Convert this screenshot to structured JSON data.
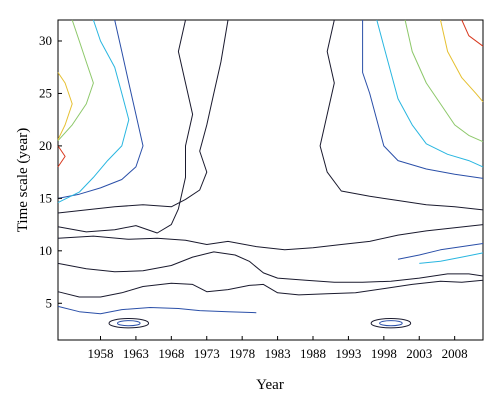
{
  "chart_data": {
    "type": "contour",
    "title": "",
    "xlabel": "Year",
    "ylabel": "Time scale (year)",
    "xlim": [
      1952,
      2012
    ],
    "ylim": [
      1.5,
      32
    ],
    "x_ticks": [
      1958,
      1963,
      1968,
      1973,
      1978,
      1983,
      1988,
      1993,
      1998,
      2003,
      2008
    ],
    "y_ticks": [
      5,
      10,
      15,
      20,
      25,
      30
    ],
    "grid": false,
    "legend": "none",
    "colors": {
      "level1": "#1a1a2e",
      "level2": "#2a4fa8",
      "level3": "#29b6e0",
      "level4": "#8dc86a",
      "level5": "#e6c030",
      "level6": "#d8381e"
    },
    "contours": [
      {
        "level": 1,
        "points": [
          [
            1952,
            8.8
          ],
          [
            1956,
            8.3
          ],
          [
            1960,
            8.0
          ],
          [
            1964,
            8.1
          ],
          [
            1968,
            8.6
          ],
          [
            1971,
            9.4
          ],
          [
            1974,
            9.9
          ],
          [
            1977,
            9.6
          ],
          [
            1979,
            9.0
          ],
          [
            1981,
            7.9
          ],
          [
            1983,
            7.4
          ],
          [
            1987,
            7.2
          ],
          [
            1991,
            7.0
          ],
          [
            1995,
            7.0
          ],
          [
            1999,
            7.1
          ],
          [
            2003,
            7.4
          ],
          [
            2007,
            7.8
          ],
          [
            2010,
            7.8
          ],
          [
            2012,
            7.6
          ]
        ]
      },
      {
        "level": 1,
        "points": [
          [
            1952,
            6.1
          ],
          [
            1955,
            5.6
          ],
          [
            1958,
            5.6
          ],
          [
            1961,
            6.0
          ],
          [
            1964,
            6.6
          ],
          [
            1968,
            6.9
          ],
          [
            1971,
            6.8
          ],
          [
            1973,
            6.1
          ],
          [
            1976,
            6.3
          ],
          [
            1979,
            6.7
          ],
          [
            1981,
            6.8
          ],
          [
            1983,
            6.0
          ],
          [
            1986,
            5.8
          ],
          [
            1990,
            5.9
          ],
          [
            1994,
            6.0
          ],
          [
            1998,
            6.4
          ],
          [
            2002,
            6.8
          ],
          [
            2006,
            7.1
          ],
          [
            2009,
            7.0
          ],
          [
            2012,
            7.2
          ]
        ]
      },
      {
        "level": 1,
        "points": [
          [
            1952,
            13.6
          ],
          [
            1956,
            13.9
          ],
          [
            1960,
            14.2
          ],
          [
            1964,
            14.4
          ],
          [
            1968,
            14.2
          ],
          [
            1970,
            14.9
          ],
          [
            1972,
            15.8
          ],
          [
            1973,
            17.5
          ],
          [
            1972,
            19.5
          ],
          [
            1973,
            22.0
          ],
          [
            1974,
            25.0
          ],
          [
            1975,
            28.0
          ],
          [
            1976,
            32.0
          ]
        ]
      },
      {
        "level": 1,
        "points": [
          [
            1952,
            12.3
          ],
          [
            1956,
            11.8
          ],
          [
            1960,
            12.0
          ],
          [
            1963,
            12.4
          ],
          [
            1966,
            11.7
          ],
          [
            1968,
            12.5
          ],
          [
            1969,
            14.0
          ],
          [
            1970,
            17.0
          ],
          [
            1970,
            20.0
          ],
          [
            1971,
            23.0
          ],
          [
            1970,
            26.0
          ],
          [
            1969,
            29.0
          ],
          [
            1970,
            32.0
          ]
        ]
      },
      {
        "level": 1,
        "points": [
          [
            1952,
            11.2
          ],
          [
            1957,
            11.4
          ],
          [
            1962,
            11.1
          ],
          [
            1966,
            11.2
          ],
          [
            1970,
            11.0
          ],
          [
            1973,
            10.6
          ],
          [
            1976,
            10.9
          ],
          [
            1980,
            10.4
          ],
          [
            1984,
            10.1
          ],
          [
            1988,
            10.3
          ],
          [
            1992,
            10.6
          ],
          [
            1996,
            10.9
          ],
          [
            2000,
            11.5
          ],
          [
            2004,
            11.9
          ],
          [
            2008,
            12.2
          ],
          [
            2012,
            12.5
          ]
        ]
      },
      {
        "level": 1,
        "points": [
          [
            1991,
            32.0
          ],
          [
            1990,
            29.0
          ],
          [
            1991,
            26.0
          ],
          [
            1990,
            23.0
          ],
          [
            1989,
            20.0
          ],
          [
            1990,
            17.5
          ],
          [
            1992,
            15.7
          ],
          [
            1996,
            15.2
          ],
          [
            2000,
            14.8
          ],
          [
            2004,
            14.4
          ],
          [
            2008,
            14.2
          ],
          [
            2012,
            13.9
          ]
        ]
      },
      {
        "level": 2,
        "points": [
          [
            1952,
            15.0
          ],
          [
            1955,
            15.4
          ],
          [
            1958,
            16.0
          ],
          [
            1961,
            16.8
          ],
          [
            1963,
            18.0
          ],
          [
            1964,
            20.0
          ],
          [
            1963,
            23.0
          ],
          [
            1962,
            26.0
          ],
          [
            1961,
            29.0
          ],
          [
            1960,
            32.0
          ]
        ]
      },
      {
        "level": 2,
        "points": [
          [
            1952,
            4.7
          ],
          [
            1955,
            4.2
          ],
          [
            1958,
            4.0
          ],
          [
            1961,
            4.4
          ],
          [
            1965,
            4.6
          ],
          [
            1969,
            4.5
          ],
          [
            1972,
            4.3
          ],
          [
            1976,
            4.2
          ],
          [
            1980,
            4.1
          ]
        ]
      },
      {
        "level": 2,
        "points": [
          [
            1995,
            32.0
          ],
          [
            1995,
            29.0
          ],
          [
            1995,
            27.0
          ],
          [
            1996,
            25.0
          ],
          [
            1997,
            22.5
          ],
          [
            1998,
            20.0
          ],
          [
            2000,
            18.6
          ],
          [
            2004,
            17.8
          ],
          [
            2008,
            17.3
          ],
          [
            2012,
            16.9
          ]
        ]
      },
      {
        "level": 2,
        "points": [
          [
            2000,
            9.2
          ],
          [
            2003,
            9.6
          ],
          [
            2006,
            10.1
          ],
          [
            2009,
            10.4
          ],
          [
            2012,
            10.7
          ]
        ]
      },
      {
        "level": 3,
        "points": [
          [
            1952,
            14.6
          ],
          [
            1955,
            15.6
          ],
          [
            1957,
            17.0
          ],
          [
            1959,
            18.6
          ],
          [
            1961,
            20.0
          ],
          [
            1962,
            22.5
          ],
          [
            1961,
            25.0
          ],
          [
            1960,
            27.5
          ],
          [
            1958,
            30.0
          ],
          [
            1957,
            32.0
          ]
        ]
      },
      {
        "level": 3,
        "points": [
          [
            1997,
            32.0
          ],
          [
            1998,
            29.5
          ],
          [
            1999,
            27.0
          ],
          [
            2000,
            24.5
          ],
          [
            2002,
            22.0
          ],
          [
            2004,
            20.2
          ],
          [
            2007,
            19.2
          ],
          [
            2010,
            18.6
          ],
          [
            2012,
            18.0
          ]
        ]
      },
      {
        "level": 3,
        "points": [
          [
            2003,
            8.8
          ],
          [
            2006,
            9.0
          ],
          [
            2009,
            9.4
          ],
          [
            2012,
            9.8
          ]
        ]
      },
      {
        "level": 4,
        "points": [
          [
            1952,
            20.5
          ],
          [
            1954,
            22.0
          ],
          [
            1956,
            24.0
          ],
          [
            1957,
            26.0
          ],
          [
            1956,
            28.0
          ],
          [
            1955,
            30.0
          ],
          [
            1954,
            32.0
          ]
        ]
      },
      {
        "level": 4,
        "points": [
          [
            2001,
            32.0
          ],
          [
            2002,
            29.0
          ],
          [
            2004,
            26.0
          ],
          [
            2006,
            24.0
          ],
          [
            2008,
            22.0
          ],
          [
            2010,
            21.0
          ],
          [
            2012,
            20.4
          ]
        ]
      },
      {
        "level": 5,
        "points": [
          [
            1952,
            20.6
          ],
          [
            1953,
            22.0
          ],
          [
            1954,
            24.0
          ],
          [
            1953,
            26.0
          ],
          [
            1952,
            27.0
          ]
        ]
      },
      {
        "level": 5,
        "points": [
          [
            2006,
            32.0
          ],
          [
            2007,
            29.0
          ],
          [
            2009,
            26.5
          ],
          [
            2011,
            25.0
          ],
          [
            2012,
            24.2
          ]
        ]
      },
      {
        "level": 6,
        "points": [
          [
            1952,
            18.0
          ],
          [
            1953,
            19.0
          ],
          [
            1952,
            20.0
          ]
        ]
      },
      {
        "level": 6,
        "points": [
          [
            2009,
            32.0
          ],
          [
            2010,
            30.5
          ],
          [
            2012,
            29.5
          ]
        ]
      }
    ],
    "rings": [
      {
        "level": 1,
        "center": [
          1962,
          3.1
        ],
        "rx": 2.8,
        "ry": 0.45
      },
      {
        "level": 2,
        "center": [
          1962,
          3.1
        ],
        "rx": 1.6,
        "ry": 0.25
      },
      {
        "level": 1,
        "center": [
          1999,
          3.1
        ],
        "rx": 2.8,
        "ry": 0.45
      },
      {
        "level": 2,
        "center": [
          1999,
          3.1
        ],
        "rx": 1.6,
        "ry": 0.25
      }
    ]
  }
}
